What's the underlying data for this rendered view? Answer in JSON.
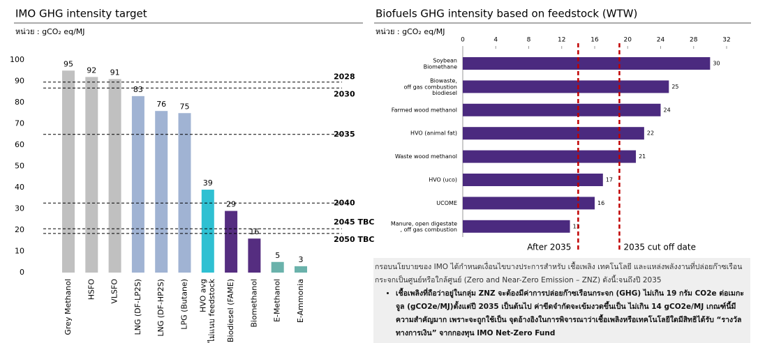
{
  "chart_data": [
    {
      "type": "bar",
      "title": "IMO GHG intensity target",
      "unit": "หน่วย : gCO₂ eq/MJ",
      "categories": [
        "Grey Methanol",
        "HSFO",
        "VLSFO",
        "LNG (DF-LP2S)",
        "LNG (DF-HP2S)",
        "LPG (Butane)",
        "HVO avg\nไม่แนบ feedstock",
        "Biodiesel (FAME)",
        "Biomethanol",
        "E-Methanol",
        "E-Ammonia"
      ],
      "values": [
        95,
        92,
        91,
        83,
        76,
        75,
        39,
        29,
        16,
        5,
        3
      ],
      "colors": [
        "#c0c0c0",
        "#c0c0c0",
        "#c0c0c0",
        "#a0b3d3",
        "#a0b3d3",
        "#a0b3d3",
        "#2fc0d2",
        "#552d80",
        "#552d80",
        "#6ab2ab",
        "#6ab2ab"
      ],
      "ylim": [
        0,
        100
      ],
      "yticks": [
        0,
        10,
        20,
        30,
        40,
        50,
        60,
        70,
        80,
        90,
        100
      ],
      "targets": [
        {
          "label": "2028",
          "value": 89.6
        },
        {
          "label": "2030",
          "value": 86.8
        },
        {
          "label": "2035",
          "value": 65
        },
        {
          "label": "2040",
          "value": 32.7
        },
        {
          "label": "2045 TBC",
          "value": 20.6
        },
        {
          "label": "2050 TBC",
          "value": 18.4
        }
      ],
      "target_color": "#000000"
    },
    {
      "type": "barh",
      "title": "Biofuels GHG intensity based on feedstock (WTW)",
      "unit": "หน่วย : gCO₂ eq/MJ",
      "categories": [
        "Soybean\nBiomethane",
        "Biowaste,\noff gas combustion\nbiodiesel",
        "Farmed wood methanol",
        "HVO (animal fat)",
        "Waste wood methanol",
        "HVO (uco)",
        "UCOME",
        "Manure, open digestate\n, off gas combustion"
      ],
      "values": [
        30,
        25,
        24,
        22,
        21,
        17,
        16,
        13
      ],
      "color": "#4b2a7f",
      "xlim": [
        0,
        32
      ],
      "xticks": [
        0,
        4,
        8,
        12,
        16,
        20,
        24,
        28,
        32
      ],
      "thresholds": [
        {
          "label": "After 2035",
          "value": 14
        },
        {
          "label": "2035 cut off date",
          "value": 19
        }
      ],
      "threshold_color": "#c00000"
    }
  ],
  "notes": {
    "intro": "กรอบนโยบายของ IMO ได้กำหนดเงื่อนไขบางประการสำหรับ เชื้อเพลิง เทคโนโลยี และแหล่งพลังงานที่ปล่อยก๊าซเรือนกระจกเป็นศูนย์หรือใกล้ศูนย์ (Zero and Near-Zero Emission – ZNZ) ดังนี้:จนถึงปี 2035",
    "bullet": "เชื้อเพลิงที่ถือว่าอยู่ในกลุ่ม ZNZ จะต้องมีค่าการปล่อยก๊าซเรือนกระจก (GHG) ไม่เกิน 19 กรัม CO2e ต่อเมกะจูล (gCO2e/MJ)ตั้งแต่ปี 2035 เป็นต้นไป ค่าขีดจำกัดจะเข้มงวดขึ้นเป็น ไม่เกิน 14 gCO2e/MJ เกณฑ์นี้มีความสำคัญมาก เพราะจะถูกใช้เป็น จุดอ้างอิงในการพิจารณาว่าเชื้อเพลิงหรือเทคโนโลยีใดมีสิทธิได้รับ “รางวัลทางการเงิน” จากกองทุน IMO Net-Zero Fund"
  }
}
